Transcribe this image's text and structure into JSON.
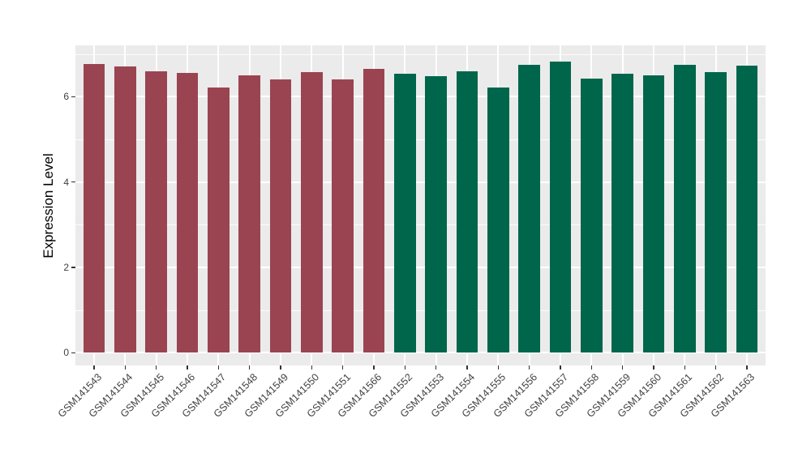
{
  "chart_data": {
    "type": "bar",
    "title": "",
    "xlabel": "",
    "ylabel": "Expression Level",
    "ylim": [
      0,
      7.2
    ],
    "y_major_ticks": [
      0,
      2,
      4,
      6
    ],
    "y_minor_gridlines": [
      1,
      3,
      5,
      7
    ],
    "grid": true,
    "legend_position": "none",
    "categories": [
      "GSM141543",
      "GSM141544",
      "GSM141545",
      "GSM141546",
      "GSM141547",
      "GSM141548",
      "GSM141549",
      "GSM141550",
      "GSM141551",
      "GSM141566",
      "GSM141552",
      "GSM141553",
      "GSM141554",
      "GSM141555",
      "GSM141556",
      "GSM141557",
      "GSM141558",
      "GSM141559",
      "GSM141560",
      "GSM141561",
      "GSM141562",
      "GSM141563"
    ],
    "values": [
      6.77,
      6.7,
      6.6,
      6.55,
      6.21,
      6.49,
      6.41,
      6.57,
      6.41,
      6.65,
      6.53,
      6.48,
      6.59,
      6.21,
      6.75,
      6.83,
      6.43,
      6.54,
      6.5,
      6.74,
      6.58,
      6.73
    ],
    "bar_colors": [
      "#9A4451",
      "#9A4451",
      "#9A4451",
      "#9A4451",
      "#9A4451",
      "#9A4451",
      "#9A4451",
      "#9A4451",
      "#9A4451",
      "#9A4451",
      "#00664B",
      "#00664B",
      "#00664B",
      "#00664B",
      "#00664B",
      "#00664B",
      "#00664B",
      "#00664B",
      "#00664B",
      "#00664B",
      "#00664B",
      "#00664B"
    ]
  },
  "style": {
    "panel_background": "#EBEBEB",
    "gridline_color": "#FFFFFF",
    "tick_mark_color": "#333333",
    "axis_text_color": "#404040",
    "axis_title_color": "#000000",
    "figure_background": "#FFFFFF",
    "group_color_left": "#9A4451",
    "group_color_right": "#00664B"
  }
}
